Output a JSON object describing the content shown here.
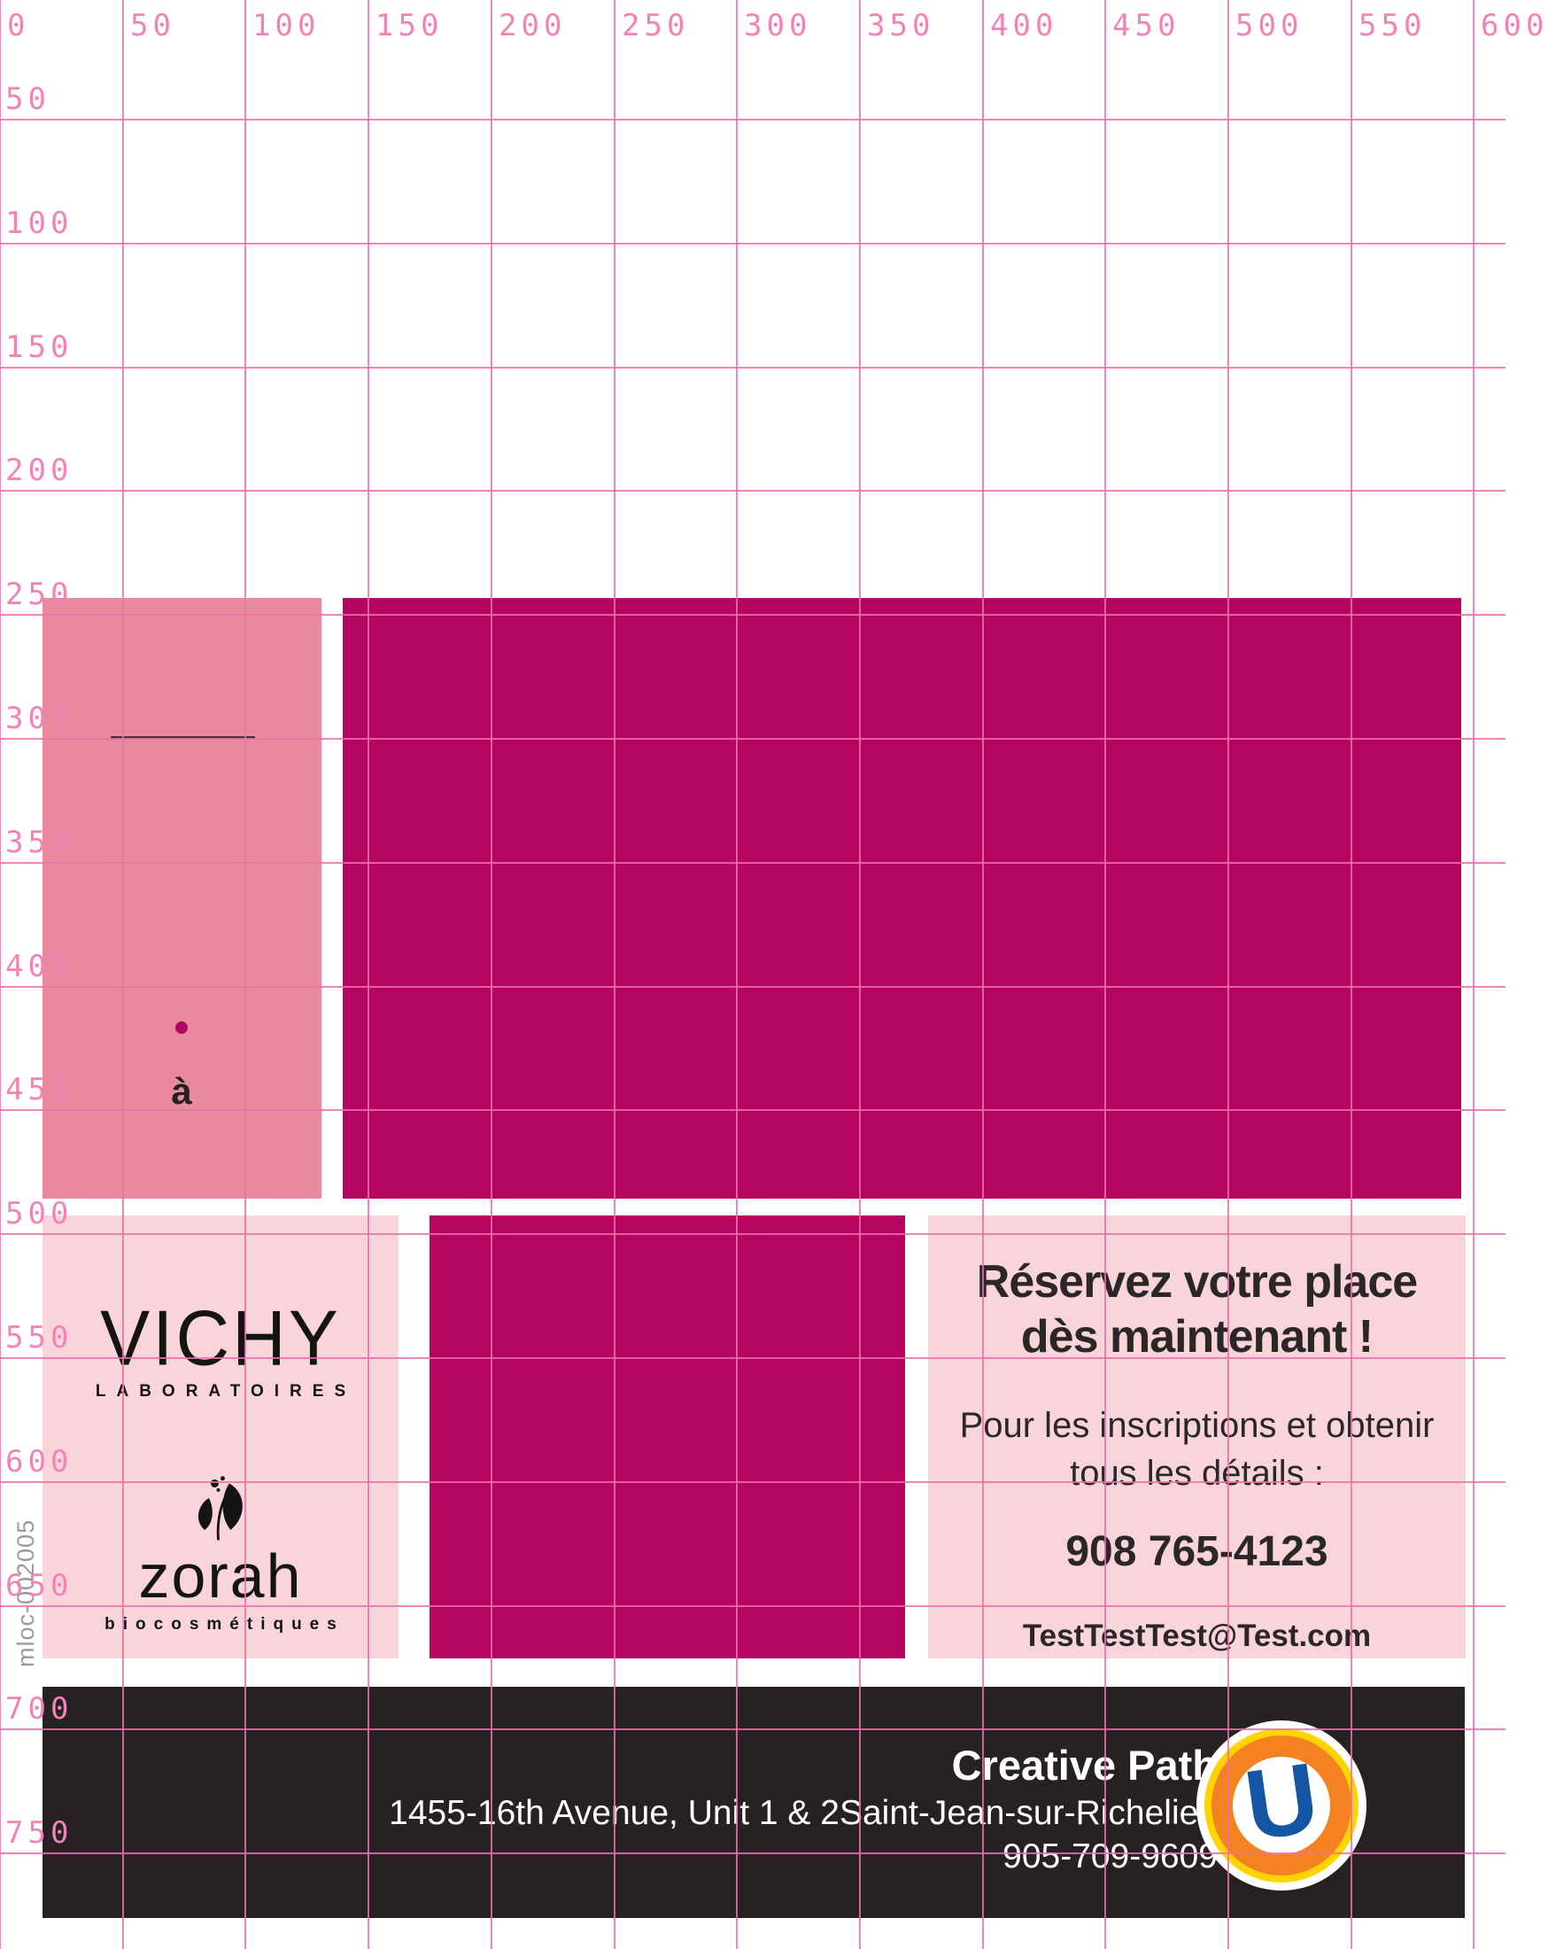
{
  "ruler": {
    "top_labels": [
      "0",
      "50",
      "100",
      "150",
      "200",
      "250",
      "300",
      "350",
      "400",
      "450",
      "500",
      "550",
      "600"
    ],
    "left_labels": [
      "50",
      "100",
      "150",
      "200",
      "250",
      "300",
      "350",
      "400",
      "450",
      "500",
      "550",
      "600",
      "650",
      "700",
      "750"
    ]
  },
  "annotations": {
    "print_code": "mloc-002005",
    "a_char": "à"
  },
  "logos": {
    "vichy": {
      "name": "VICHY",
      "sub": "LABORATOIRES"
    },
    "zorah": {
      "name": "zorah",
      "sub": "biocosmétiques",
      "icon": "zorah-leaf-icon"
    },
    "u_logo": {
      "letter": "U",
      "icon": "uniprix-u-icon"
    }
  },
  "contact_box": {
    "title_line1": "Réservez votre place",
    "title_line2": "dès maintenant !",
    "body_line1": "Pour les inscriptions et obtenir",
    "body_line2": "tous les détails :",
    "phone": "908 765-4123",
    "email": "TestTestTest@Test.com"
  },
  "footer": {
    "company": "Creative Path",
    "address": "1455-16th Avenue, Unit 1 & 2Saint-Jean-sur-Richelieu",
    "phone": "905-709-9609"
  },
  "colors": {
    "grid_line": "#ec6fad",
    "grid_label": "#f183b6",
    "rose_rect": "#e8899d",
    "magenta_rect": "#b40560",
    "pink_box": "#f9d5db",
    "footer_bg": "#272123",
    "footer_text": "#ffffff",
    "logo_blue": "#1456a4",
    "logo_orange": "#f58220",
    "logo_yellow": "#ffd400",
    "dot": "#b00566"
  }
}
